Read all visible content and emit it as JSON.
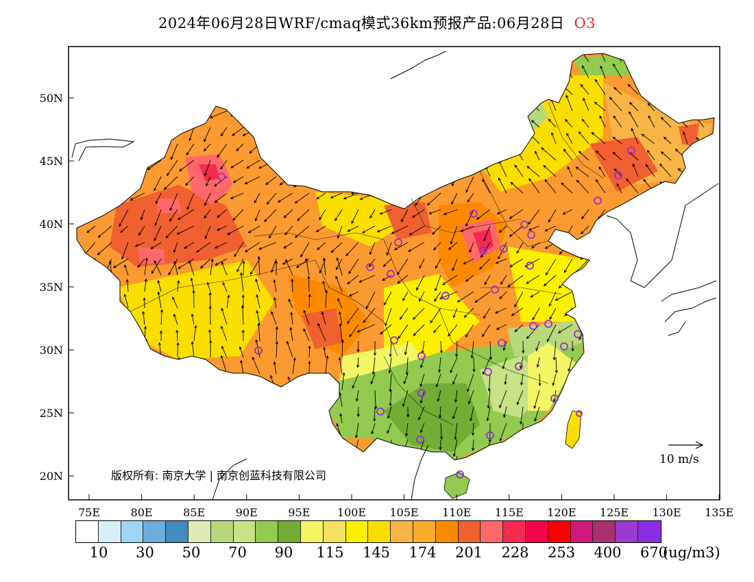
{
  "title": {
    "main": "2024年06月28日WRF/cmaq模式36km预报产品:06月28日",
    "variable": "O3"
  },
  "axes": {
    "lat_labels": [
      "50N",
      "45N",
      "40N",
      "35N",
      "30N",
      "25N",
      "20N"
    ],
    "lon_labels": [
      "75E",
      "80E",
      "85E",
      "90E",
      "95E",
      "100E",
      "105E",
      "110E",
      "115E",
      "120E",
      "125E",
      "130E",
      "135E"
    ]
  },
  "legend": {
    "colors": [
      "#ffffff",
      "#d6eefc",
      "#9fd6f4",
      "#6baedc",
      "#428bbf",
      "#dcebb8",
      "#b8d87c",
      "#c8e286",
      "#92cb50",
      "#72ad34",
      "#f2f665",
      "#f4e260",
      "#fcf000",
      "#fade00",
      "#f8b444",
      "#fbab2a",
      "#fb8a00",
      "#f06030",
      "#fe6868",
      "#f42a50",
      "#f1064a",
      "#ff0000",
      "#d01a7a",
      "#a8306c",
      "#9a3ad0",
      "#8a2ee4"
    ],
    "labels": [
      "10",
      "30",
      "50",
      "70",
      "90",
      "115",
      "145",
      "174",
      "201",
      "228",
      "253",
      "400",
      "670"
    ],
    "unit": "(ug/m3)"
  },
  "wind_reference": "10 m/s",
  "copyright": "版权所有: 南京大学 | 南京创蓝科技有限公司"
}
